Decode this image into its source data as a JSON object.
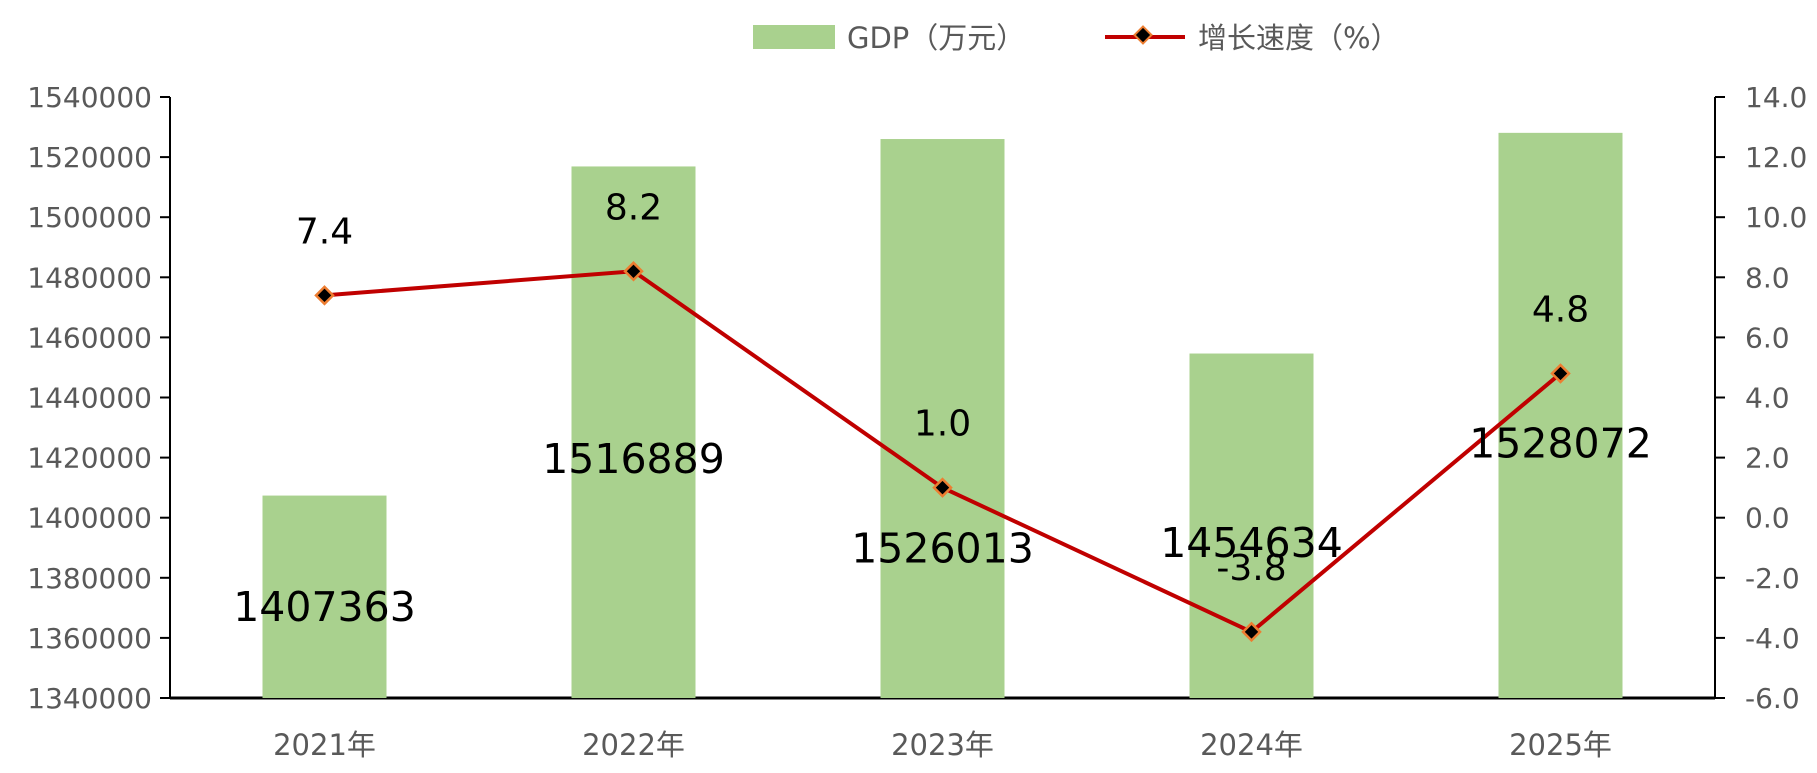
{
  "chart_data": {
    "type": "bar",
    "categories": [
      "2021年",
      "2022年",
      "2023年",
      "2024年",
      "2025年"
    ],
    "series": [
      {
        "name": "GDP（万元）",
        "type": "bar",
        "axis": "left",
        "values": [
          1407363,
          1516889,
          1526013,
          1454634,
          1528072
        ],
        "color": "#a9d18e"
      },
      {
        "name": "增长速度（%）",
        "type": "line",
        "axis": "right",
        "values": [
          7.4,
          8.2,
          1.0,
          -3.8,
          4.8
        ],
        "color": "#c00000",
        "marker_fill": "#000000",
        "marker_edge": "#ed7d31"
      }
    ],
    "y_left": {
      "min": 1340000,
      "max": 1540000,
      "step": 20000,
      "ticks": [
        "1340000",
        "1360000",
        "1380000",
        "1400000",
        "1420000",
        "1440000",
        "1460000",
        "1480000",
        "1500000",
        "1520000",
        "1540000"
      ]
    },
    "y_right": {
      "min": -6.0,
      "max": 14.0,
      "step": 2.0,
      "ticks": [
        "-6.0",
        "-4.0",
        "-2.0",
        "0.0",
        "2.0",
        "4.0",
        "6.0",
        "8.0",
        "10.0",
        "12.0",
        "14.0"
      ]
    },
    "bar_labels": [
      "1407363",
      "1516889",
      "1526013",
      "1454634",
      "1528072"
    ],
    "line_labels": [
      "7.4",
      "8.2",
      "1.0",
      "-3.8",
      "4.8"
    ],
    "legend_position": "top-center",
    "grid": false
  }
}
